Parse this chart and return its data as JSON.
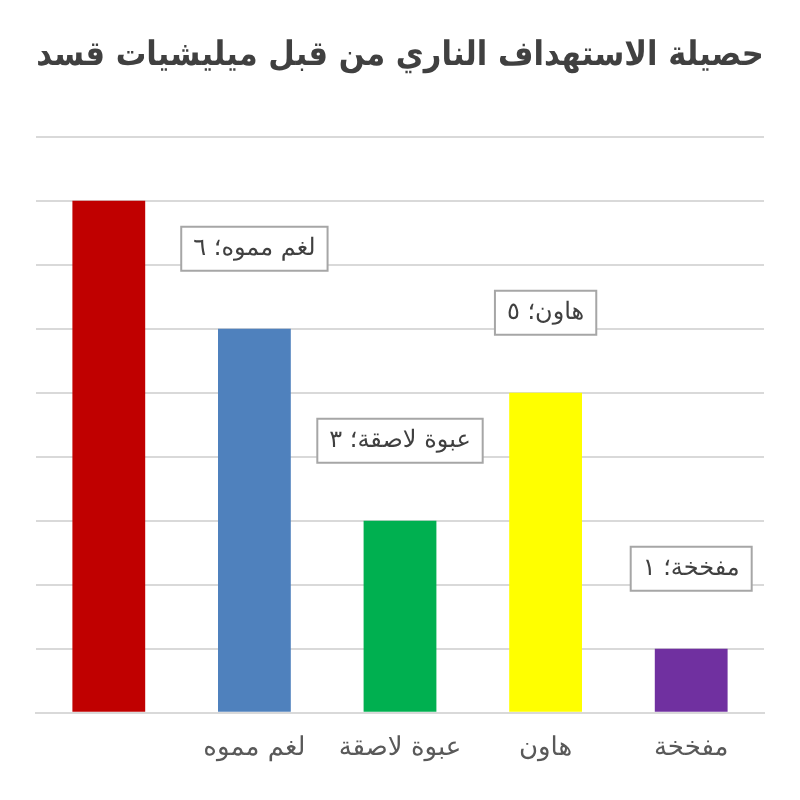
{
  "chart_data": {
    "type": "bar",
    "title": "حصيلة الاستهداف الناري من قبل ميليشيات قسد",
    "categories": [
      null,
      "لغم مموه",
      "عبوة لاصقة",
      "هاون",
      "مفخخة"
    ],
    "values": [
      8,
      6,
      3,
      5,
      1
    ],
    "colors": [
      "#c00000",
      "#4f81bd",
      "#00b050",
      "#ffff00",
      "#7030a0"
    ],
    "value_labels": [
      null,
      "لغم مموه؛ ٦",
      "عبوة لاصقة؛ ٣",
      "هاون؛ ٥",
      "مفخخة؛ ١"
    ],
    "ylim": [
      0,
      9
    ],
    "yticks": [
      {
        "value": 0,
        "label": null
      },
      {
        "value": 1,
        "label": null
      },
      {
        "value": 2,
        "label": null
      },
      {
        "value": 3,
        "label": null
      },
      {
        "value": 4,
        "label": null
      },
      {
        "value": 5,
        "label": null
      },
      {
        "value": 6,
        "label": null
      },
      {
        "value": 7,
        "label": null
      },
      {
        "value": 8,
        "label": null
      },
      {
        "value": 9,
        "label": null
      }
    ],
    "tick_labels": "x",
    "grid": "y",
    "legend": false
  }
}
